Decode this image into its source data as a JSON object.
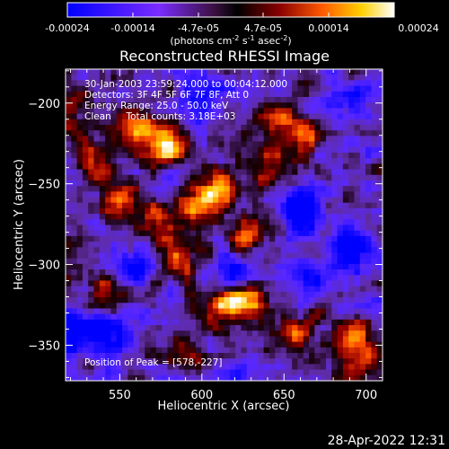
{
  "figure": {
    "date_stamp": "28-Apr-2022 12:31"
  },
  "colorbar": {
    "tick_labels": [
      "-0.00024",
      "-0.00014",
      "-4.7e-05",
      "4.7e-05",
      "0.00014",
      "0.00024"
    ],
    "units_main": "(photons cm",
    "units_exp1": "-2",
    "units_mid": " s",
    "units_exp2": "-1",
    "units_mid2": " asec",
    "units_exp3": "-2",
    "units_end": ")"
  },
  "chart_data": {
    "type": "heatmap",
    "title": "Reconstructed RHESSI Image",
    "xlabel": "Heliocentric X (arcsec)",
    "ylabel": "Heliocentric Y (arcsec)",
    "xlim": [
      517,
      710
    ],
    "ylim": [
      -372,
      -179
    ],
    "x_ticks": [
      550,
      600,
      650,
      700
    ],
    "y_ticks": [
      -200,
      -250,
      -300,
      -350
    ],
    "x_tick_labels": [
      "550",
      "600",
      "650",
      "700"
    ],
    "y_tick_labels": [
      "−200",
      "−250",
      "−300",
      "−350"
    ],
    "value_range": [
      -0.00024,
      0.00024
    ],
    "colormap": "blue-purple-black-red-yellow-white",
    "peak": [
      578,
      -227
    ],
    "annotations": [
      "30-Jan-2003 23:59:24.000 to 00:04:12.000",
      "Detectors: 3F 4F 5F 6F 7F 8F, Att 0",
      "Energy Range: 25.0 - 50.0 keV",
      "Clean     Total counts: 3.18E+03"
    ],
    "peak_label": "Position of Peak = [578,-227]",
    "bright_sources": [
      {
        "x": 578,
        "y": -227,
        "v": 1.0
      },
      {
        "x": 560,
        "y": -212,
        "v": 0.72
      },
      {
        "x": 535,
        "y": -235,
        "v": 0.6
      },
      {
        "x": 548,
        "y": -262,
        "v": 0.7
      },
      {
        "x": 598,
        "y": -262,
        "v": 0.8
      },
      {
        "x": 612,
        "y": -250,
        "v": 0.65
      },
      {
        "x": 574,
        "y": -272,
        "v": 0.5
      },
      {
        "x": 585,
        "y": -296,
        "v": 0.6
      },
      {
        "x": 628,
        "y": -282,
        "v": 0.7
      },
      {
        "x": 640,
        "y": -242,
        "v": 0.55
      },
      {
        "x": 662,
        "y": -222,
        "v": 0.5
      },
      {
        "x": 645,
        "y": -210,
        "v": 0.55
      },
      {
        "x": 628,
        "y": -322,
        "v": 0.9
      },
      {
        "x": 610,
        "y": -330,
        "v": 0.55
      },
      {
        "x": 655,
        "y": -345,
        "v": 0.6
      },
      {
        "x": 690,
        "y": -345,
        "v": 0.7
      },
      {
        "x": 700,
        "y": -365,
        "v": 0.55
      },
      {
        "x": 538,
        "y": -318,
        "v": 0.45
      },
      {
        "x": 590,
        "y": -355,
        "v": 0.45
      },
      {
        "x": 520,
        "y": -200,
        "v": 0.4
      }
    ],
    "dark_sources": [
      {
        "x": 605,
        "y": -190,
        "v": -0.7
      },
      {
        "x": 690,
        "y": -200,
        "v": -0.5
      },
      {
        "x": 660,
        "y": -265,
        "v": -0.85
      },
      {
        "x": 690,
        "y": -290,
        "v": -0.6
      },
      {
        "x": 525,
        "y": -340,
        "v": -0.75
      },
      {
        "x": 560,
        "y": -300,
        "v": -0.55
      },
      {
        "x": 550,
        "y": -345,
        "v": -0.7
      },
      {
        "x": 620,
        "y": -305,
        "v": -0.5
      },
      {
        "x": 585,
        "y": -250,
        "v": -0.4
      },
      {
        "x": 665,
        "y": -310,
        "v": -0.55
      }
    ]
  }
}
